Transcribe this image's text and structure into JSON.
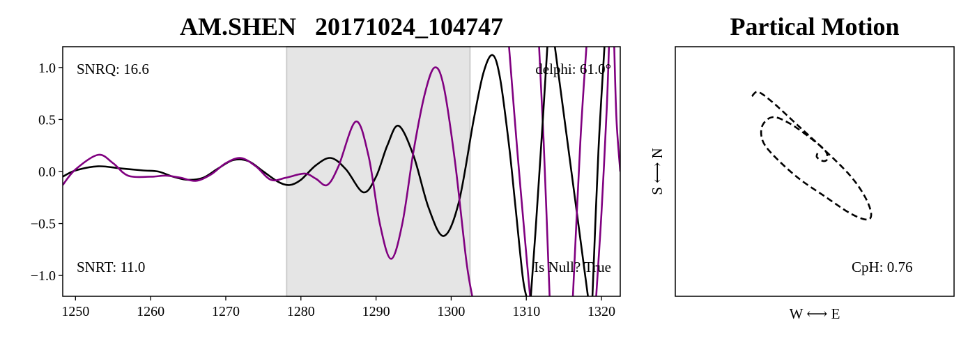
{
  "colors": {
    "trace_black": "#000000",
    "trace_purple": "#800080",
    "window_fill": "#e5e5e5",
    "window_edge": "#cccccc",
    "particle_motion": "#000000"
  },
  "chart_data": [
    {
      "type": "line",
      "title": "AM.SHEN   20171024_104747",
      "xlabel": "",
      "ylabel": "",
      "xlim": [
        1248.3,
        1322.5
      ],
      "ylim": [
        -1.2,
        1.2
      ],
      "xticks": [
        "1250",
        "1260",
        "1270",
        "1280",
        "1290",
        "1300",
        "1310",
        "1320"
      ],
      "yticks": [
        "1.0",
        "0.5",
        "0.0",
        "−0.5",
        "−1.0"
      ],
      "xtick_values": [
        1250,
        1260,
        1270,
        1280,
        1290,
        1300,
        1310,
        1320
      ],
      "ytick_values": [
        1.0,
        0.5,
        0.0,
        -0.5,
        -1.0
      ],
      "grid": false,
      "shaded_window": [
        1278.1,
        1302.5
      ],
      "annotations": {
        "snrq": "SNRQ: 16.6",
        "snrt": "SNRT: 11.0",
        "delphi": "delphi: 61.0°",
        "null": "Is Null? True"
      },
      "series": [
        {
          "color": "#000000",
          "points": [
            [
              1248.3,
              -0.05
            ],
            [
              1250,
              0.01
            ],
            [
              1253,
              0.05
            ],
            [
              1256,
              0.03
            ],
            [
              1259,
              0.01
            ],
            [
              1261,
              0.0
            ],
            [
              1263,
              -0.05
            ],
            [
              1265,
              -0.08
            ],
            [
              1267,
              -0.06
            ],
            [
              1269,
              0.03
            ],
            [
              1271,
              0.11
            ],
            [
              1273,
              0.1
            ],
            [
              1275,
              0.0
            ],
            [
              1277,
              -0.1
            ],
            [
              1278.5,
              -0.13
            ],
            [
              1280,
              -0.08
            ],
            [
              1282,
              0.06
            ],
            [
              1284,
              0.13
            ],
            [
              1286,
              0.02
            ],
            [
              1288.3,
              -0.2
            ],
            [
              1290,
              -0.05
            ],
            [
              1291.5,
              0.25
            ],
            [
              1293,
              0.44
            ],
            [
              1295,
              0.15
            ],
            [
              1297,
              -0.35
            ],
            [
              1299,
              -0.62
            ],
            [
              1301,
              -0.3
            ],
            [
              1303,
              0.5
            ],
            [
              1304.3,
              0.95
            ],
            [
              1305.5,
              1.12
            ],
            [
              1306.5,
              0.9
            ],
            [
              1307.7,
              0.25
            ],
            [
              1308.5,
              -0.3
            ],
            [
              1309.5,
              -1.0
            ],
            [
              1310,
              -1.2
            ]
          ]
        },
        {
          "color": "#800080",
          "points": [
            [
              1248.3,
              -0.13
            ],
            [
              1250,
              0.02
            ],
            [
              1253,
              0.16
            ],
            [
              1255,
              0.08
            ],
            [
              1257,
              -0.04
            ],
            [
              1260,
              -0.05
            ],
            [
              1262,
              -0.04
            ],
            [
              1264,
              -0.06
            ],
            [
              1266,
              -0.09
            ],
            [
              1268,
              -0.03
            ],
            [
              1270,
              0.08
            ],
            [
              1272,
              0.13
            ],
            [
              1274,
              0.05
            ],
            [
              1276,
              -0.08
            ],
            [
              1278,
              -0.06
            ],
            [
              1280.5,
              -0.02
            ],
            [
              1282,
              -0.07
            ],
            [
              1283.5,
              -0.13
            ],
            [
              1285,
              0.05
            ],
            [
              1287.3,
              0.48
            ],
            [
              1289,
              0.15
            ],
            [
              1290.5,
              -0.5
            ],
            [
              1292,
              -0.84
            ],
            [
              1293.5,
              -0.5
            ],
            [
              1295,
              0.2
            ],
            [
              1296.5,
              0.75
            ],
            [
              1297.8,
              1.0
            ],
            [
              1299,
              0.82
            ],
            [
              1300.5,
              0.1
            ],
            [
              1302,
              -0.85
            ],
            [
              1302.8,
              -1.2
            ]
          ]
        },
        {
          "color": "#800080",
          "points": [
            [
              1307.7,
              1.2
            ],
            [
              1308.8,
              0.2
            ],
            [
              1310,
              -0.8
            ],
            [
              1310.5,
              -1.2
            ]
          ]
        },
        {
          "color": "#800080",
          "points": [
            [
              1311.7,
              1.2
            ],
            [
              1312.3,
              0.3
            ],
            [
              1313.1,
              -1.2
            ]
          ]
        },
        {
          "color": "#000000",
          "points": [
            [
              1312.8,
              1.2
            ],
            [
              1312.2,
              0.5
            ],
            [
              1311.2,
              -0.6
            ],
            [
              1310.6,
              -1.2
            ]
          ]
        },
        {
          "color": "#000000",
          "points": [
            [
              1313.8,
              1.2
            ],
            [
              1316,
              0.0
            ],
            [
              1318.2,
              -1.2
            ]
          ]
        },
        {
          "color": "#800080",
          "points": [
            [
              1316.2,
              -1.2
            ],
            [
              1317.2,
              0.3
            ],
            [
              1318,
              1.2
            ]
          ]
        },
        {
          "color": "#800080",
          "points": [
            [
              1319.3,
              -1.2
            ],
            [
              1320,
              -0.4
            ],
            [
              1320.7,
              0.6
            ],
            [
              1321,
              1.2
            ]
          ]
        },
        {
          "color": "#000000",
          "points": [
            [
              1318.8,
              -1.2
            ],
            [
              1319.6,
              0.2
            ],
            [
              1320.4,
              1.2
            ]
          ]
        },
        {
          "color": "#800080",
          "points": [
            [
              1321.7,
              1.2
            ],
            [
              1322,
              0.5
            ],
            [
              1322.5,
              0.0
            ]
          ]
        }
      ]
    },
    {
      "type": "line",
      "title": "Partical Motion",
      "xlabel": "W ⟷ E",
      "ylabel": "S ⟷ N",
      "xticks": [],
      "yticks": [],
      "grid": false,
      "annotations": {
        "cph": "CpH: 0.76"
      },
      "series": [
        {
          "color": "#000000",
          "style": "dashed",
          "points": [
            [
              -0.3,
              0.36
            ],
            [
              -0.27,
              0.38
            ],
            [
              -0.2,
              0.33
            ],
            [
              -0.08,
              0.22
            ],
            [
              0.05,
              0.1
            ],
            [
              0.17,
              -0.02
            ],
            [
              0.24,
              -0.12
            ],
            [
              0.27,
              -0.2
            ],
            [
              0.25,
              -0.23
            ],
            [
              0.17,
              -0.2
            ],
            [
              0.05,
              -0.12
            ],
            [
              -0.08,
              -0.03
            ],
            [
              -0.2,
              0.08
            ],
            [
              -0.25,
              0.15
            ],
            [
              -0.25,
              0.22
            ],
            [
              -0.2,
              0.26
            ],
            [
              -0.12,
              0.23
            ],
            [
              -0.02,
              0.16
            ],
            [
              0.05,
              0.1
            ],
            [
              0.06,
              0.06
            ],
            [
              0.04,
              0.05
            ],
            [
              0.01,
              0.07
            ],
            [
              0.02,
              0.1
            ]
          ]
        }
      ]
    }
  ]
}
